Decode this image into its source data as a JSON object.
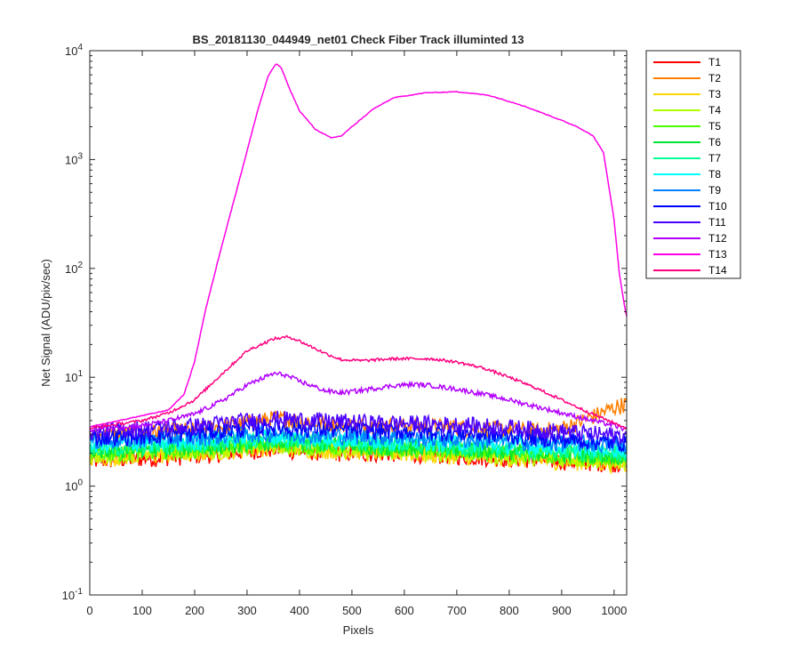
{
  "chart_data": {
    "type": "line",
    "title": "BS_20181130_044949_net01   Check Fiber     Track illuminted 13",
    "xlabel": "Pixels",
    "ylabel": "Net Signal (ADU/pix/sec)",
    "xlim": [
      0,
      1024
    ],
    "ylim": [
      0.1,
      10000
    ],
    "yscale": "log",
    "xticks": [
      "0",
      "100",
      "200",
      "300",
      "400",
      "500",
      "600",
      "700",
      "800",
      "900",
      "1000"
    ],
    "xtick_values": [
      0,
      100,
      200,
      300,
      400,
      500,
      600,
      700,
      800,
      900,
      1000
    ],
    "yticks": [
      {
        "value": 0.1,
        "base": "10",
        "exp": "-1"
      },
      {
        "value": 1,
        "base": "10",
        "exp": "0"
      },
      {
        "value": 10,
        "base": "10",
        "exp": "1"
      },
      {
        "value": 100,
        "base": "10",
        "exp": "2"
      },
      {
        "value": 1000,
        "base": "10",
        "exp": "3"
      },
      {
        "value": 10000,
        "base": "10",
        "exp": "4"
      }
    ],
    "grid": false,
    "legend_position": "outside-top-right",
    "series": [
      {
        "name": "T1",
        "color": "#ff0000",
        "x": [
          0,
          100,
          200,
          300,
          350,
          400,
          500,
          600,
          700,
          800,
          900,
          1024
        ],
        "y": [
          1.7,
          1.8,
          1.9,
          2.1,
          2.2,
          2.1,
          2.0,
          2.0,
          1.9,
          1.8,
          1.7,
          1.6
        ]
      },
      {
        "name": "T2",
        "color": "#ff7f00",
        "x": [
          0,
          100,
          200,
          300,
          350,
          400,
          500,
          600,
          700,
          800,
          850,
          900,
          950,
          1000,
          1024
        ],
        "y": [
          2.9,
          3.1,
          3.3,
          3.8,
          4.2,
          4.0,
          3.6,
          3.6,
          3.5,
          3.3,
          3.2,
          3.4,
          4.2,
          5.3,
          5.8
        ]
      },
      {
        "name": "T3",
        "color": "#ffd700",
        "x": [
          0,
          100,
          200,
          300,
          350,
          400,
          500,
          600,
          700,
          800,
          900,
          1024
        ],
        "y": [
          1.8,
          1.9,
          2.0,
          2.2,
          2.3,
          2.2,
          2.1,
          2.0,
          1.9,
          1.8,
          1.7,
          1.6
        ]
      },
      {
        "name": "T4",
        "color": "#b2ff00",
        "x": [
          0,
          100,
          200,
          300,
          350,
          400,
          500,
          600,
          700,
          800,
          900,
          1024
        ],
        "y": [
          1.9,
          2.0,
          2.1,
          2.3,
          2.4,
          2.3,
          2.2,
          2.1,
          2.0,
          1.9,
          1.8,
          1.7
        ]
      },
      {
        "name": "T5",
        "color": "#4cff00",
        "x": [
          0,
          100,
          200,
          300,
          350,
          400,
          500,
          600,
          700,
          800,
          900,
          1024
        ],
        "y": [
          2.0,
          2.1,
          2.2,
          2.4,
          2.5,
          2.4,
          2.3,
          2.2,
          2.1,
          2.0,
          1.9,
          1.8
        ]
      },
      {
        "name": "T6",
        "color": "#00e533",
        "x": [
          0,
          100,
          200,
          300,
          350,
          400,
          500,
          600,
          700,
          800,
          900,
          1024
        ],
        "y": [
          2.1,
          2.2,
          2.3,
          2.5,
          2.6,
          2.5,
          2.4,
          2.3,
          2.2,
          2.1,
          2.0,
          1.9
        ]
      },
      {
        "name": "T7",
        "color": "#00ff99",
        "x": [
          0,
          100,
          200,
          300,
          350,
          400,
          500,
          600,
          700,
          800,
          900,
          1024
        ],
        "y": [
          2.2,
          2.3,
          2.4,
          2.6,
          2.7,
          2.6,
          2.5,
          2.4,
          2.3,
          2.2,
          2.1,
          2.0
        ]
      },
      {
        "name": "T8",
        "color": "#00ffff",
        "x": [
          0,
          100,
          200,
          300,
          350,
          400,
          500,
          600,
          700,
          800,
          900,
          1024
        ],
        "y": [
          2.4,
          2.5,
          2.6,
          2.8,
          2.9,
          2.8,
          2.7,
          2.6,
          2.5,
          2.4,
          2.3,
          2.2
        ]
      },
      {
        "name": "T9",
        "color": "#007fff",
        "x": [
          0,
          100,
          200,
          300,
          350,
          400,
          500,
          600,
          700,
          800,
          900,
          1024
        ],
        "y": [
          2.6,
          2.7,
          2.8,
          3.0,
          3.1,
          3.0,
          2.9,
          2.8,
          2.7,
          2.6,
          2.5,
          2.4
        ]
      },
      {
        "name": "T10",
        "color": "#0000ff",
        "x": [
          0,
          100,
          200,
          300,
          350,
          400,
          500,
          600,
          700,
          800,
          900,
          1024
        ],
        "y": [
          2.8,
          2.9,
          3.1,
          3.4,
          3.5,
          3.4,
          3.3,
          3.2,
          3.1,
          2.9,
          2.7,
          2.5
        ]
      },
      {
        "name": "T11",
        "color": "#4c00ff",
        "x": [
          0,
          100,
          200,
          300,
          350,
          400,
          500,
          600,
          700,
          800,
          900,
          1024
        ],
        "y": [
          3.2,
          3.4,
          3.6,
          4.0,
          4.2,
          4.1,
          3.9,
          3.8,
          3.7,
          3.5,
          3.2,
          2.9
        ]
      },
      {
        "name": "T12",
        "color": "#b200ff",
        "x": [
          0,
          100,
          150,
          200,
          250,
          300,
          350,
          370,
          400,
          450,
          480,
          520,
          580,
          620,
          650,
          700,
          750,
          800,
          850,
          900,
          950,
          1000,
          1024
        ],
        "y": [
          3.3,
          3.6,
          4.0,
          4.6,
          6.0,
          8.5,
          10.8,
          10.6,
          9.2,
          7.5,
          7.2,
          7.6,
          8.4,
          8.6,
          8.4,
          7.8,
          7.0,
          6.2,
          5.4,
          4.7,
          4.1,
          3.6,
          3.3
        ]
      },
      {
        "name": "T13",
        "color": "#ff00e5",
        "x": [
          0,
          150,
          180,
          200,
          220,
          250,
          280,
          300,
          320,
          340,
          355,
          365,
          380,
          400,
          430,
          460,
          480,
          500,
          540,
          580,
          640,
          700,
          760,
          820,
          880,
          930,
          960,
          980,
          1000,
          1010,
          1020,
          1024
        ],
        "y": [
          3.5,
          5.0,
          7.0,
          14,
          40,
          150,
          520,
          1200,
          2800,
          5800,
          7600,
          7000,
          4600,
          2800,
          1900,
          1580,
          1650,
          2000,
          2900,
          3700,
          4100,
          4200,
          3900,
          3200,
          2500,
          2000,
          1650,
          1150,
          280,
          90,
          45,
          36
        ]
      },
      {
        "name": "T14",
        "color": "#ff007f",
        "x": [
          0,
          100,
          150,
          200,
          250,
          300,
          350,
          380,
          400,
          450,
          480,
          520,
          580,
          650,
          700,
          750,
          800,
          850,
          900,
          950,
          1000,
          1024
        ],
        "y": [
          3.4,
          4.0,
          4.7,
          6.2,
          10.5,
          17.5,
          22.5,
          23.5,
          21.5,
          16.5,
          14.5,
          14.2,
          14.8,
          14.8,
          13.8,
          12.2,
          10.0,
          8.0,
          6.2,
          4.8,
          3.8,
          3.4
        ]
      }
    ]
  }
}
